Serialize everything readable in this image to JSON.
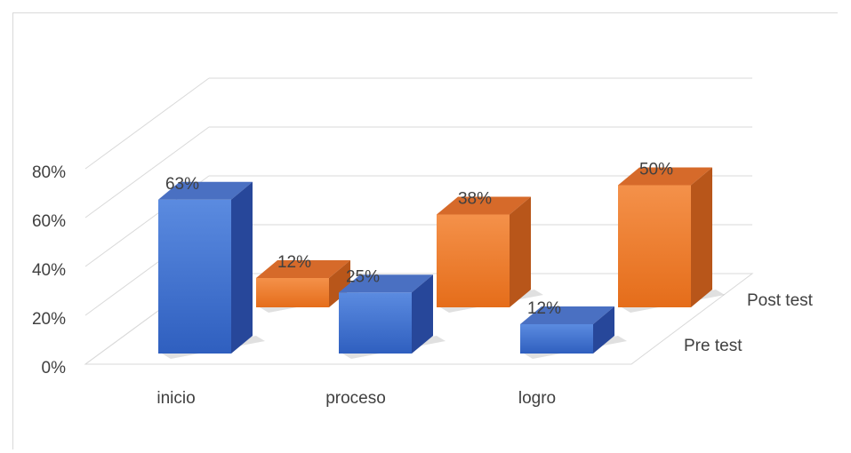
{
  "chart_data": {
    "type": "bar",
    "categories": [
      "inicio",
      "proceso",
      "logro"
    ],
    "series": [
      {
        "name": "Pre test",
        "values": [
          63,
          25,
          12
        ],
        "labels": [
          "63%",
          "25%",
          "12%"
        ],
        "color": "#4472c4"
      },
      {
        "name": "Post test",
        "values": [
          12,
          38,
          50
        ],
        "labels": [
          "12%",
          "38%",
          "50%"
        ],
        "color": "#ed7d31"
      }
    ],
    "yticks": [
      "0%",
      "20%",
      "40%",
      "60%",
      "80%"
    ],
    "ylim": [
      0,
      80
    ],
    "grid": true,
    "style": "3d-column"
  }
}
